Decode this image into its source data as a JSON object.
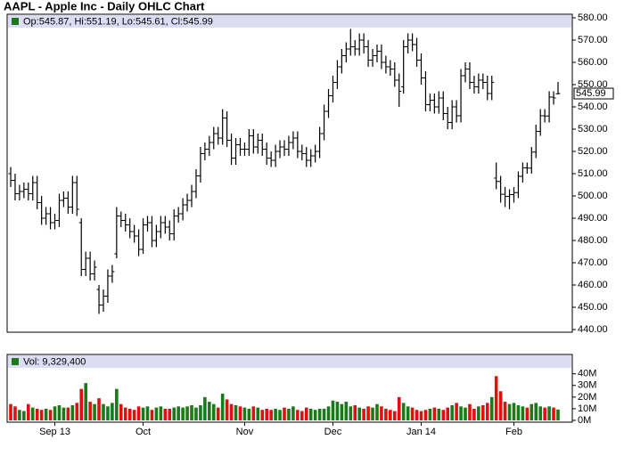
{
  "chart_data": [
    {
      "type": "ohlc",
      "title": "AAPL - Apple Inc - Daily OHLC Chart",
      "legend": "Op:545.87, Hi:551.19, Lo:545.61, Cl:545.99",
      "last_label": "545.99",
      "color": "#000000",
      "legend_color": "#1a7a1a",
      "header_color": "#dcdcf5",
      "categories": [
        null,
        null,
        null,
        null,
        null,
        null,
        null,
        null,
        null,
        null,
        "Sep 13",
        null,
        null,
        null,
        null,
        null,
        null,
        null,
        null,
        null,
        null,
        null,
        null,
        null,
        null,
        null,
        null,
        null,
        null,
        null,
        "Oct",
        null,
        null,
        null,
        null,
        null,
        null,
        null,
        null,
        null,
        null,
        null,
        null,
        null,
        null,
        null,
        null,
        null,
        null,
        null,
        null,
        null,
        null,
        "Nov",
        null,
        null,
        null,
        null,
        null,
        null,
        null,
        null,
        null,
        null,
        null,
        null,
        null,
        null,
        null,
        null,
        null,
        null,
        null,
        "Dec",
        null,
        null,
        null,
        null,
        null,
        null,
        null,
        null,
        null,
        null,
        null,
        null,
        null,
        null,
        null,
        null,
        null,
        null,
        null,
        "Jan 14",
        null,
        null,
        null,
        null,
        null,
        null,
        null,
        null,
        null,
        null,
        null,
        null,
        null,
        null,
        null,
        null,
        null,
        null,
        null,
        null,
        "Feb",
        null,
        null,
        null,
        null,
        null,
        null,
        null,
        null,
        null,
        null
      ],
      "open": [
        510,
        507,
        501,
        502,
        503,
        501,
        506,
        497,
        490,
        492,
        488,
        489,
        498,
        499,
        495,
        506,
        488,
        467,
        472,
        465,
        458,
        451,
        455,
        464,
        474,
        491,
        489,
        487,
        484,
        482,
        476,
        487,
        488,
        480,
        484,
        488,
        486,
        483,
        491,
        492,
        496,
        498,
        502,
        509,
        519,
        521,
        524,
        528,
        526,
        535,
        525,
        517,
        523,
        521,
        521,
        527,
        522,
        525,
        521,
        517,
        516,
        520,
        522,
        521,
        524,
        526,
        520,
        519,
        516,
        518,
        520,
        528,
        538,
        545,
        551,
        558,
        563,
        566,
        567,
        566,
        570,
        567,
        561,
        563,
        565,
        560,
        558,
        557,
        552,
        549,
        567,
        570,
        568,
        561,
        553,
        541,
        543,
        540,
        544,
        537,
        533,
        540,
        536,
        554,
        557,
        551,
        549,
        552,
        551,
        546,
        508,
        506.5,
        500.75,
        499.78,
        500.6,
        501.5,
        508.8,
        512.6,
        512.5,
        519.7,
        529,
        536,
        535.9,
        544.4,
        545.87
      ],
      "high": [
        513,
        510,
        505,
        506,
        506,
        509,
        509,
        500,
        495,
        495,
        492,
        501,
        502,
        502,
        509,
        509,
        490,
        475,
        475,
        471,
        460,
        458,
        467,
        469,
        495,
        493,
        492,
        490,
        487,
        485,
        490,
        491,
        491,
        487,
        491,
        491,
        489,
        494,
        495,
        499,
        501,
        505,
        512,
        522,
        524,
        527,
        531,
        531,
        539,
        538,
        528,
        526,
        526,
        524,
        530,
        530,
        528,
        528,
        524,
        520,
        523,
        525,
        525,
        527,
        529,
        529,
        523,
        522,
        521,
        523,
        531,
        541,
        548,
        554,
        561,
        566,
        569,
        575,
        570,
        573,
        573,
        570,
        566,
        568,
        568,
        563,
        561,
        560,
        555,
        570,
        573,
        573,
        571,
        564,
        556,
        546,
        546,
        547,
        547,
        540,
        543,
        543,
        557,
        560,
        560,
        554,
        555,
        555,
        554,
        554,
        515,
        509,
        504,
        503,
        504,
        511,
        515,
        515,
        522,
        532,
        539,
        539,
        547,
        547,
        551.19
      ],
      "low": [
        504,
        498,
        498,
        499,
        498,
        498,
        494,
        487,
        487,
        485,
        485,
        486,
        495,
        492,
        492,
        491,
        464,
        464,
        462,
        462,
        447,
        448,
        452,
        461,
        472,
        486,
        484,
        481,
        479,
        473,
        474,
        484,
        477,
        477,
        481,
        483,
        480,
        480,
        488,
        489,
        493,
        495,
        499,
        506,
        516,
        518,
        521,
        523,
        523,
        522,
        514,
        514,
        518,
        518,
        518,
        519,
        519,
        518,
        514,
        513,
        513,
        517,
        518,
        518,
        521,
        517,
        516,
        513,
        513,
        515,
        517,
        525,
        535,
        542,
        548,
        555,
        560,
        563,
        563,
        563,
        564,
        558,
        558,
        560,
        557,
        555,
        554,
        549,
        540,
        546,
        564,
        565,
        558,
        550,
        538,
        538,
        537,
        537,
        534,
        530,
        530,
        533,
        533,
        551,
        548,
        546,
        546,
        548,
        543,
        543,
        503,
        497,
        495,
        494,
        497,
        499,
        506,
        510,
        510,
        517,
        527,
        533,
        533,
        541,
        545.61
      ],
      "close": [
        507,
        501,
        502,
        503,
        501,
        506,
        497,
        490,
        492,
        488,
        489,
        498,
        499,
        495,
        506,
        494,
        467,
        472,
        465,
        468,
        451,
        455,
        464,
        466,
        491,
        489,
        487,
        484,
        482,
        476,
        487,
        488,
        480,
        484,
        488,
        486,
        483,
        491,
        492,
        496,
        498,
        502,
        509,
        519,
        521,
        524,
        528,
        526,
        535,
        525,
        517,
        523,
        521,
        521,
        527,
        522,
        525,
        521,
        517,
        516,
        520,
        522,
        521,
        524,
        526,
        520,
        519,
        516,
        518,
        520,
        528,
        538,
        545,
        551,
        558,
        563,
        566,
        567,
        566,
        570,
        567,
        561,
        563,
        565,
        560,
        558,
        557,
        552,
        547,
        567,
        570,
        568,
        561,
        553,
        541,
        543,
        540,
        544,
        537,
        533,
        540,
        536,
        554,
        557,
        551,
        549,
        552,
        551,
        546,
        551,
        506.5,
        500.75,
        499.78,
        500.6,
        501.5,
        508.8,
        512.6,
        512.5,
        519.7,
        529,
        536,
        535.9,
        544.4,
        544,
        545.99
      ],
      "ylim": [
        440,
        580
      ],
      "yticks": [
        {
          "value": 440,
          "label": "440.00"
        },
        {
          "value": 450,
          "label": "450.00"
        },
        {
          "value": 460,
          "label": "460.00"
        },
        {
          "value": 470,
          "label": "470.00"
        },
        {
          "value": 480,
          "label": "480.00"
        },
        {
          "value": 490,
          "label": "490.00"
        },
        {
          "value": 500,
          "label": "500.00"
        },
        {
          "value": 510,
          "label": "510.00"
        },
        {
          "value": 520,
          "label": "520.00"
        },
        {
          "value": 530,
          "label": "530.00"
        },
        {
          "value": 540,
          "label": "540.00"
        },
        {
          "value": 550,
          "label": "550.00"
        },
        {
          "value": 560,
          "label": "560.00"
        },
        {
          "value": 570,
          "label": "570.00"
        },
        {
          "value": 580,
          "label": "580.00"
        }
      ]
    },
    {
      "type": "bar",
      "legend": "Vol: 9,329,400",
      "legend_color": "#1a7a1a",
      "header_color": "#dcdcf5",
      "up_color": "#1a7a1a",
      "down_color": "#e01010",
      "values": [
        14,
        12,
        9,
        8,
        14,
        11,
        10,
        9,
        10,
        9,
        12,
        13,
        11,
        11,
        13,
        15,
        27,
        32,
        16,
        14,
        19,
        14,
        12,
        15,
        27,
        14,
        11,
        10,
        9,
        12,
        11,
        12,
        9,
        11,
        12,
        10,
        10,
        11,
        12,
        11,
        12,
        13,
        11,
        13,
        20,
        16,
        14,
        11,
        23,
        18,
        14,
        13,
        12,
        11,
        10,
        12,
        11,
        9,
        10,
        9,
        10,
        9,
        11,
        10,
        12,
        9,
        8,
        11,
        10,
        9,
        10,
        10,
        12,
        17,
        16,
        14,
        16,
        12,
        13,
        11,
        10,
        12,
        11,
        14,
        12,
        10,
        9,
        8,
        20,
        15,
        12,
        11,
        9,
        8,
        9,
        10,
        11,
        10,
        9,
        11,
        13,
        15,
        12,
        11,
        14,
        10,
        12,
        13,
        15,
        20,
        38,
        25,
        16,
        14,
        15,
        13,
        12,
        11,
        14,
        15,
        12,
        11,
        12,
        11,
        9.3294
      ],
      "ylim": [
        0,
        52
      ],
      "yticks": [
        {
          "value": 0,
          "label": "0M"
        },
        {
          "value": 10,
          "label": "10M"
        },
        {
          "value": 20,
          "label": "20M"
        },
        {
          "value": 30,
          "label": "30M"
        },
        {
          "value": 40,
          "label": "40M"
        }
      ]
    }
  ]
}
